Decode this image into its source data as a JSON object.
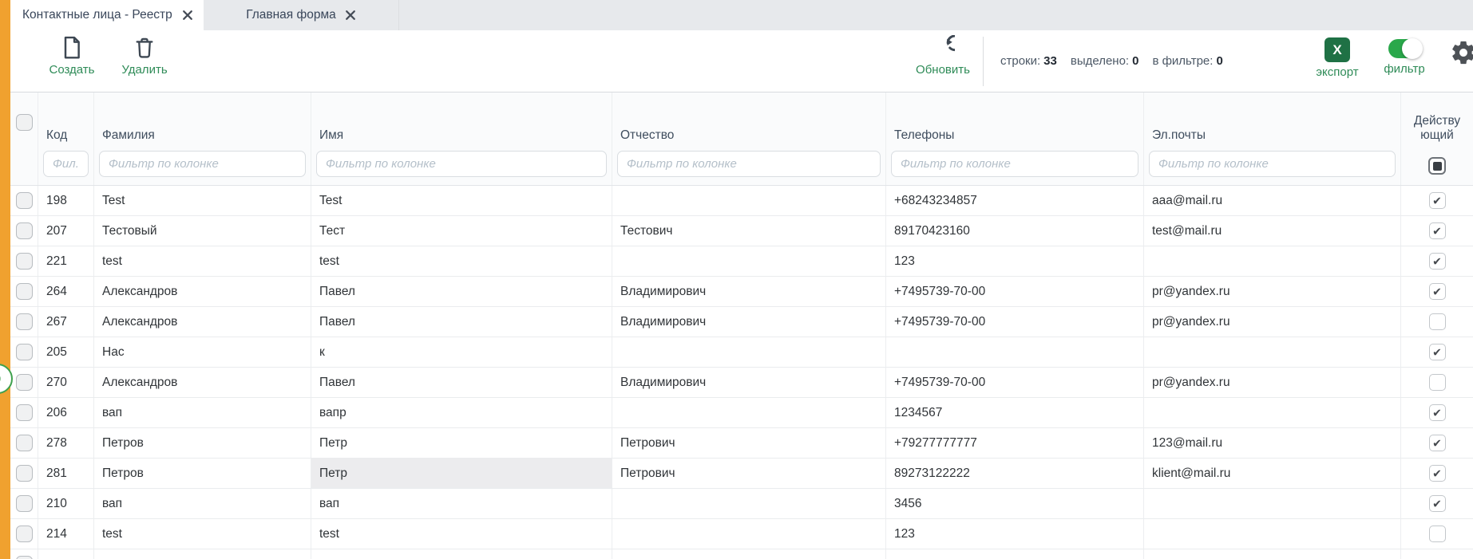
{
  "tabs": [
    {
      "label": "Контактные лица - Реестр",
      "active": true
    },
    {
      "label": "Главная форма",
      "active": false
    }
  ],
  "toolbar": {
    "create_label": "Создать",
    "delete_label": "Удалить",
    "refresh_label": "Обновить",
    "counters": [
      {
        "label": "строки:",
        "value": "33"
      },
      {
        "label": "выделено:",
        "value": "0"
      },
      {
        "label": "в фильтре:",
        "value": "0"
      }
    ],
    "export_label": "экспорт",
    "export_icon_letter": "X",
    "filter_label": "фильтр",
    "filter_toggle_on": true
  },
  "badge": {
    "value": "0"
  },
  "table": {
    "columns": [
      {
        "label": "",
        "name": "select"
      },
      {
        "label": "Код",
        "filter_placeholder": "Фил..."
      },
      {
        "label": "Фамилия",
        "filter_placeholder": "Фильтр по колонке"
      },
      {
        "label": "Имя",
        "filter_placeholder": "Фильтр по колонке"
      },
      {
        "label": "Отчество",
        "filter_placeholder": "Фильтр по колонке"
      },
      {
        "label": "Телефоны",
        "filter_placeholder": "Фильтр по колонке"
      },
      {
        "label": "Эл.почты",
        "filter_placeholder": "Фильтр по колонке"
      },
      {
        "label": "Действующий"
      }
    ],
    "rows": [
      {
        "code": "198",
        "last_name": "Test",
        "first_name": "Test",
        "middle_name": "",
        "phones": "+68243234857",
        "emails": "aaa@mail.ru",
        "active": true
      },
      {
        "code": "207",
        "last_name": "Тестовый",
        "first_name": "Тест",
        "middle_name": "Тестович",
        "phones": "89170423160",
        "emails": "test@mail.ru",
        "active": true
      },
      {
        "code": "221",
        "last_name": "test",
        "first_name": "test",
        "middle_name": "",
        "phones": "123",
        "emails": "",
        "active": true
      },
      {
        "code": "264",
        "last_name": "Александров",
        "first_name": "Павел",
        "middle_name": "Владимирович",
        "phones": "+7495739-70-00",
        "emails": "pr@yandex.ru",
        "active": true
      },
      {
        "code": "267",
        "last_name": "Александров",
        "first_name": "Павел",
        "middle_name": "Владимирович",
        "phones": "+7495739-70-00",
        "emails": "pr@yandex.ru",
        "active": false
      },
      {
        "code": "205",
        "last_name": "Нас",
        "first_name": "к",
        "middle_name": "",
        "phones": "",
        "emails": "",
        "active": true
      },
      {
        "code": "270",
        "last_name": "Александров",
        "first_name": "Павел",
        "middle_name": "Владимирович",
        "phones": "+7495739-70-00",
        "emails": "pr@yandex.ru",
        "active": false
      },
      {
        "code": "206",
        "last_name": "вап",
        "first_name": "вапр",
        "middle_name": "",
        "phones": "1234567",
        "emails": "",
        "active": true
      },
      {
        "code": "278",
        "last_name": "Петров",
        "first_name": "Петр",
        "middle_name": "Петрович",
        "phones": "+79277777777",
        "emails": "123@mail.ru",
        "active": true
      },
      {
        "code": "281",
        "last_name": "Петров",
        "first_name": "Петр",
        "middle_name": "Петрович",
        "phones": "89273122222",
        "emails": "klient@mail.ru",
        "active": true,
        "selected_cell": "first_name"
      },
      {
        "code": "210",
        "last_name": "вап",
        "first_name": "вап",
        "middle_name": "",
        "phones": "3456",
        "emails": "",
        "active": true
      },
      {
        "code": "214",
        "last_name": "test",
        "first_name": "test",
        "middle_name": "",
        "phones": "123",
        "emails": "",
        "active": false
      },
      {
        "code": "",
        "last_name": "",
        "first_name": "",
        "middle_name": "",
        "phones": "",
        "emails": "",
        "active": null,
        "partial": true
      }
    ]
  },
  "colors": {
    "accent_orange": "#f0a12f",
    "action_green": "#2e8b57",
    "excel_green": "#1f7145",
    "toggle_green": "#2aa84b",
    "badge_green": "#3fa14e",
    "header_text": "#3f4d5e",
    "cell_text": "#303438",
    "placeholder_gray": "#b4bfc9"
  }
}
